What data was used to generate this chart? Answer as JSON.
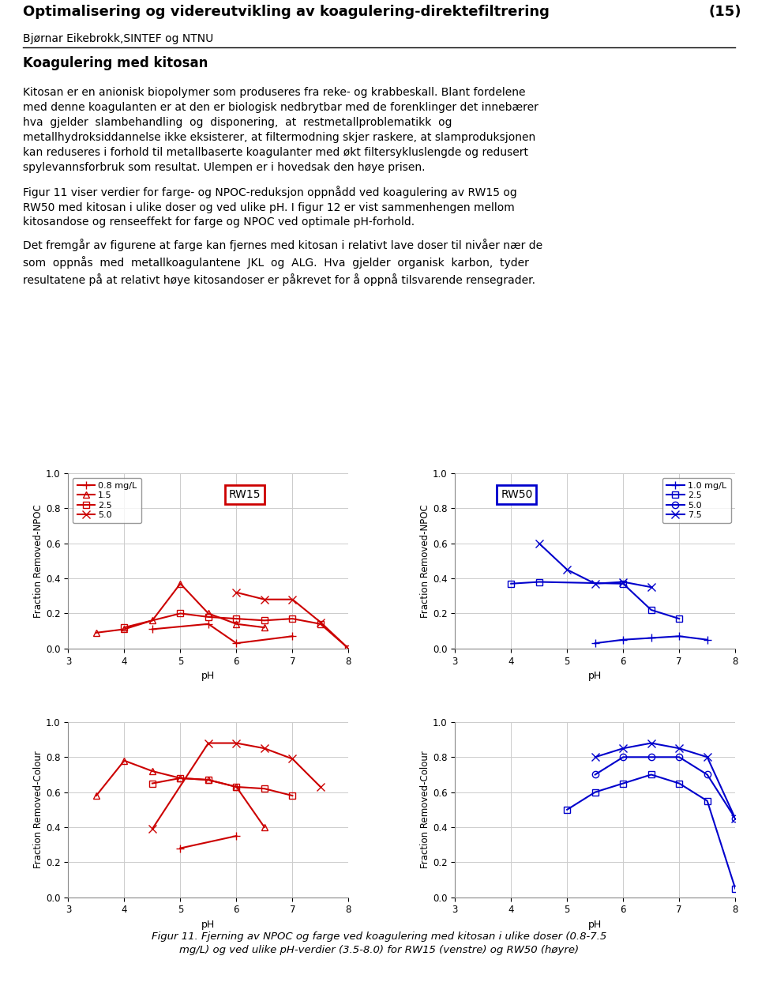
{
  "title": "Optimalisering og videreutvikling av koagulering-direktefiltrering",
  "title_num": "(15)",
  "subtitle": "Bjørnar Eikebrokk,SINTEF og NTNU",
  "section_title": "Koagulering med kitosan",
  "para1_line1": "Kitosan er en anionisk biopolymer som produseres fra reke- og krabbeskall. Blant fordelene",
  "para1_line2": "med denne koagulanten er at den er biologisk nedbrytbar med de forenklinger det innebærer",
  "para1_line3": "hva  gjelder  slambehandling  og  disponering,  at  restmetallproblematikk  og",
  "para1_line4": "metallhydroksiddannelse ikke eksisterer, at filtermodning skjer raskere, at slamproduksjonen",
  "para1_line5": "kan reduseres i forhold til metallbaserte koagulanter med økt filtersykluslengde og redusert",
  "para1_line6": "spylevannsforbruk som resultat. Ulempen er i hovedsak den høye prisen.",
  "para2_line1": "Figur 11 viser verdier for farge- og NPOC-reduksjon oppnådd ved koagulering av RW15 og",
  "para2_line2": "RW50 med kitosan i ulike doser og ved ulike pH. I figur 12 er vist sammenhengen mellom",
  "para2_line3": "kitosandose og renseeffekt for farge og NPOC ved optimale pH-forhold.",
  "para3_line1": "Det fremgår av figurene at farge kan fjernes med kitosan i relativt lave doser til nivåer nær de",
  "para3_line2": "som  oppnås  med  metallkoagulantene  JKL  og  ALG.  Hva  gjelder  organisk  karbon,  tyder",
  "para3_line3": "resultatene på at relativt høye kitosandoser er påkrevet for å oppnå tilsvarende rensegrader.",
  "caption_line1": "Figur 11. Fjerning av NPOC og farge ved koagulering med kitosan i ulike doser (0.8-7.5",
  "caption_line2": "mg/L) og ved ulike pH-verdier (3.5-8.0) for RW15 (venstre) og RW50 (høyre)",
  "red": "#CC0000",
  "blue": "#0000CC",
  "rw15_npoc_d08_ph": [
    4.5,
    5.5,
    6.0,
    7.0
  ],
  "rw15_npoc_d08_v": [
    0.11,
    0.14,
    0.03,
    0.07
  ],
  "rw15_npoc_d15_ph": [
    3.5,
    4.0,
    4.5,
    5.0,
    5.5,
    6.0,
    6.5
  ],
  "rw15_npoc_d15_v": [
    0.09,
    0.11,
    0.16,
    0.37,
    0.2,
    0.14,
    0.12
  ],
  "rw15_npoc_d25_ph": [
    4.0,
    5.0,
    5.5,
    6.0,
    6.5,
    7.0,
    7.5,
    8.0
  ],
  "rw15_npoc_d25_v": [
    0.12,
    0.2,
    0.18,
    0.17,
    0.16,
    0.17,
    0.14,
    0.0
  ],
  "rw15_npoc_d50_ph": [
    6.0,
    6.5,
    7.0,
    7.5,
    8.0
  ],
  "rw15_npoc_d50_v": [
    0.32,
    0.28,
    0.28,
    0.15,
    0.0
  ],
  "rw15_col_d08_ph": [
    5.0,
    6.0
  ],
  "rw15_col_d08_v": [
    0.28,
    0.35
  ],
  "rw15_col_d15_ph": [
    3.5,
    4.0,
    4.5,
    5.0,
    5.5,
    6.0,
    6.5
  ],
  "rw15_col_d15_v": [
    0.58,
    0.78,
    0.72,
    0.68,
    0.67,
    0.63,
    0.4
  ],
  "rw15_col_d25_ph": [
    4.5,
    5.0,
    5.5,
    6.0,
    6.5,
    7.0
  ],
  "rw15_col_d25_v": [
    0.65,
    0.68,
    0.67,
    0.63,
    0.62,
    0.58
  ],
  "rw15_col_d50_ph": [
    4.5,
    5.5,
    6.0,
    6.5,
    7.0,
    7.5
  ],
  "rw15_col_d50_v": [
    0.39,
    0.88,
    0.88,
    0.85,
    0.79,
    0.63
  ],
  "rw50_npoc_d10_ph": [
    5.5,
    6.0,
    6.5,
    7.0,
    7.5
  ],
  "rw50_npoc_d10_v": [
    0.03,
    0.05,
    0.06,
    0.07,
    0.05
  ],
  "rw50_npoc_d25_ph": [
    4.0,
    4.5,
    6.0,
    6.5,
    7.0
  ],
  "rw50_npoc_d25_v": [
    0.37,
    0.38,
    0.37,
    0.22,
    0.17
  ],
  "rw50_npoc_d50_ph": [],
  "rw50_npoc_d50_v": [],
  "rw50_npoc_d75_ph": [
    4.5,
    5.0,
    5.5,
    6.0,
    6.5
  ],
  "rw50_npoc_d75_v": [
    0.6,
    0.45,
    0.37,
    0.38,
    0.35
  ],
  "rw50_col_d10_ph": [],
  "rw50_col_d10_v": [],
  "rw50_col_d25_ph": [
    5.0,
    5.5,
    6.0,
    6.5,
    7.0,
    7.5,
    8.0
  ],
  "rw50_col_d25_v": [
    0.5,
    0.6,
    0.65,
    0.7,
    0.65,
    0.55,
    0.05
  ],
  "rw50_col_d50_ph": [
    5.5,
    6.0,
    6.5,
    7.0,
    7.5,
    8.0
  ],
  "rw50_col_d50_v": [
    0.7,
    0.8,
    0.8,
    0.8,
    0.7,
    0.45
  ],
  "rw50_col_d75_ph": [
    5.5,
    6.0,
    6.5,
    7.0,
    7.5,
    8.0
  ],
  "rw50_col_d75_v": [
    0.8,
    0.85,
    0.88,
    0.85,
    0.8,
    0.45
  ]
}
